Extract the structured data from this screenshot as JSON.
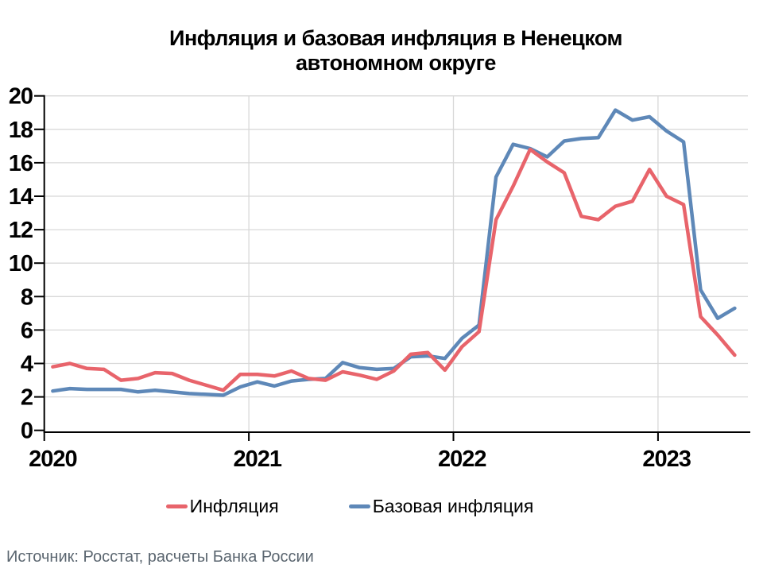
{
  "title": {
    "line1": "Инфляция и базовая инфляция в Ненецком",
    "line2": "автономном округе"
  },
  "source_note": "Источник: Росстат, расчеты Банка России",
  "legend": [
    {
      "label": "Инфляция",
      "color": "#E8646B"
    },
    {
      "label": "Базовая инфляция",
      "color": "#5E88B8"
    }
  ],
  "colors": {
    "inflation_line": "#E8646B",
    "core_inflation_line": "#5E88B8",
    "grid": "#D8D8D8",
    "axis": "#000000",
    "source_text": "#5B6670"
  },
  "chart_data": {
    "type": "line",
    "title": "Инфляция и базовая инфляция в Ненецком автономном округе",
    "x_unit": "month",
    "x_start": "2020-01",
    "x_end": "2023-05",
    "x_points": 41,
    "x_tick_labels": [
      "2020",
      "2021",
      "2022",
      "2023"
    ],
    "ylim": [
      0,
      20
    ],
    "y_ticks": [
      0,
      2,
      4,
      6,
      8,
      10,
      12,
      14,
      16,
      18,
      20
    ],
    "grid": true,
    "legend_position": "bottom",
    "series": [
      {
        "name": "Инфляция",
        "color": "#E8646B",
        "values": [
          3.8,
          4.0,
          3.7,
          3.65,
          3.0,
          3.1,
          3.45,
          3.4,
          3.0,
          2.7,
          2.4,
          3.35,
          3.35,
          3.25,
          3.55,
          3.1,
          3.0,
          3.5,
          3.3,
          3.05,
          3.55,
          4.55,
          4.65,
          3.6,
          5.0,
          5.9,
          12.6,
          14.6,
          16.8,
          16.05,
          15.4,
          12.8,
          12.6,
          13.4,
          13.7,
          15.6,
          14.0,
          13.5,
          6.8,
          5.7,
          4.5
        ]
      },
      {
        "name": "Базовая инфляция",
        "color": "#5E88B8",
        "values": [
          2.35,
          2.5,
          2.45,
          2.45,
          2.45,
          2.3,
          2.4,
          2.3,
          2.2,
          2.15,
          2.1,
          2.6,
          2.9,
          2.65,
          2.95,
          3.05,
          3.1,
          4.05,
          3.75,
          3.65,
          3.7,
          4.4,
          4.45,
          4.3,
          5.5,
          6.3,
          15.15,
          17.1,
          16.85,
          16.35,
          17.3,
          17.45,
          17.5,
          19.15,
          18.55,
          18.75,
          17.9,
          17.25,
          8.4,
          6.7,
          7.3
        ]
      }
    ]
  }
}
